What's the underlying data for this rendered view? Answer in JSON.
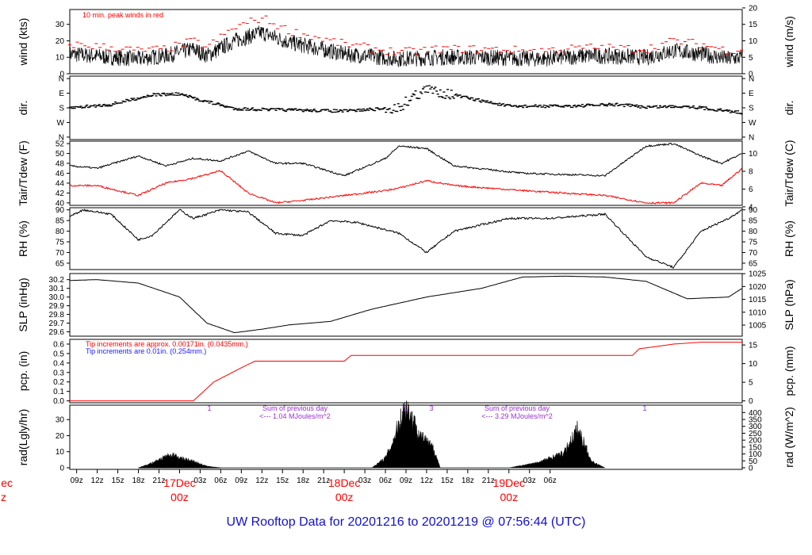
{
  "title": "UW Rooftop Data for 20201216  to  20201219 @ 07:56:44  (UTC)",
  "colors": {
    "black": "#000000",
    "red": "#ff0000",
    "blue": "#1a1aff",
    "purple": "#9a30d0",
    "title": "#1010d0"
  },
  "chart_data": [
    {
      "type": "line",
      "panel": "wind",
      "ylabel_left": "wind (kts)",
      "ylabel_right": "wind (m/s)",
      "ylim": [
        0,
        39
      ],
      "left_ticks": [
        "0",
        "10",
        "20",
        "30"
      ],
      "right_ticks": [
        "0",
        "5",
        "10",
        "15",
        "20"
      ],
      "annotation": "10 min. peak winds in red",
      "x_hours": [
        0,
        6,
        10,
        14,
        18,
        20,
        24,
        28,
        32,
        40,
        48,
        54,
        60,
        68,
        76,
        84,
        88,
        92,
        96,
        98
      ],
      "series": [
        {
          "values": [
            12,
            10,
            9,
            11,
            15,
            11,
            20,
            25,
            19,
            12,
            9,
            10,
            10,
            9,
            11,
            10,
            14,
            12,
            9,
            10
          ]
        },
        {
          "values": [
            18,
            16,
            14,
            15,
            20,
            16,
            28,
            34,
            26,
            18,
            13,
            15,
            15,
            14,
            16,
            15,
            20,
            18,
            14,
            15
          ]
        }
      ]
    },
    {
      "type": "scatter",
      "panel": "dir",
      "ylabel_left": "dir.",
      "ylabel_right": "dir.",
      "left_ticks": [
        "N",
        "E",
        "S",
        "W",
        "N"
      ],
      "right_ticks": [
        "N",
        "E",
        "S",
        "W",
        "N"
      ],
      "x_hours": [
        0,
        6,
        12,
        16,
        18,
        24,
        28,
        40,
        48,
        50,
        52,
        54,
        58,
        64,
        72,
        80,
        84,
        90,
        98
      ],
      "series": [
        {
          "values": [
            180,
            160,
            100,
            95,
            120,
            185,
            190,
            200,
            180,
            110,
            70,
            80,
            120,
            170,
            170,
            160,
            175,
            170,
            210
          ]
        }
      ]
    },
    {
      "type": "line",
      "panel": "temp",
      "ylabel_left": "Tair/Tdew (F)",
      "ylabel_right": "Tair/Tdew (C)",
      "ylim": [
        39.5,
        52.5
      ],
      "left_ticks": [
        "40",
        "42",
        "44",
        "46",
        "48",
        "50",
        "52"
      ],
      "right_ticks": [
        "4",
        "6",
        "8",
        "10"
      ],
      "x_hours": [
        0,
        4,
        10,
        14,
        18,
        22,
        26,
        30,
        34,
        40,
        46,
        48,
        52,
        56,
        66,
        78,
        84,
        88,
        92,
        95,
        98
      ],
      "series": [
        {
          "values": [
            47.5,
            47,
            49.5,
            47.5,
            49,
            48.5,
            50.5,
            48,
            48,
            45.5,
            49,
            51.5,
            51,
            47.5,
            46,
            45.5,
            51.5,
            52,
            49.5,
            48,
            50
          ]
        },
        {
          "values": [
            43.5,
            43.5,
            41.5,
            44,
            45,
            46.5,
            42,
            40,
            40.5,
            41.5,
            42.5,
            43,
            44.5,
            43.5,
            42.5,
            41.5,
            40,
            40,
            44,
            43.5,
            47
          ]
        }
      ]
    },
    {
      "type": "line",
      "panel": "rh",
      "ylabel_left": "RH (%)",
      "ylabel_right": "RH (%)",
      "ylim": [
        62,
        91
      ],
      "left_ticks": [
        "65",
        "70",
        "75",
        "80",
        "85",
        "90"
      ],
      "right_ticks": [
        "65",
        "70",
        "75",
        "80",
        "85",
        "90"
      ],
      "x_hours": [
        0,
        2,
        6,
        10,
        12,
        16,
        18,
        22,
        26,
        30,
        34,
        38,
        42,
        48,
        52,
        56,
        64,
        70,
        78,
        84,
        88,
        92,
        96,
        98
      ],
      "series": [
        {
          "values": [
            87,
            90,
            88,
            76,
            78,
            90,
            86,
            90,
            89,
            79,
            78,
            85,
            84,
            79,
            70,
            80,
            86,
            86,
            88,
            68,
            63,
            80,
            86,
            90
          ]
        }
      ]
    },
    {
      "type": "line",
      "panel": "slp",
      "ylabel_left": "SLP (inHg)",
      "ylabel_right": "SLP (hPa)",
      "ylim": [
        29.55,
        30.27
      ],
      "left_ticks": [
        "29.6",
        "29.7",
        "29.8",
        "29.9",
        "30.0",
        "30.1",
        "30.2"
      ],
      "right_ticks": [
        "1005",
        "1010",
        "1015",
        "1020",
        "1025"
      ],
      "x_hours": [
        0,
        4,
        10,
        16,
        20,
        24,
        28,
        32,
        38,
        44,
        52,
        60,
        66,
        72,
        78,
        84,
        90,
        96,
        98
      ],
      "series": [
        {
          "values": [
            30.19,
            30.2,
            30.16,
            30.0,
            29.7,
            29.59,
            29.63,
            29.68,
            29.72,
            29.86,
            30.0,
            30.1,
            30.23,
            30.24,
            30.23,
            30.18,
            29.98,
            30.0,
            30.1
          ]
        }
      ]
    },
    {
      "type": "line",
      "panel": "pcp",
      "ylabel_left": "pcp. (in)",
      "ylabel_right": "pcp. (mm)",
      "ylim": [
        -0.02,
        0.65
      ],
      "left_ticks": [
        "0.0",
        "0.1",
        "0.2",
        "0.3",
        "0.4",
        "0.5",
        "0.6"
      ],
      "right_ticks": [
        "0",
        "5",
        "10",
        "15"
      ],
      "annotations": [
        "Tip increments are approx. 0.00171in. (0.0435mm.)",
        "Tip increments are 0.01in. (0.254mm.)"
      ],
      "x_hours": [
        0,
        18,
        21,
        25,
        27,
        32,
        40,
        41,
        42,
        56,
        70,
        82,
        83,
        88,
        92,
        98
      ],
      "series": [
        {
          "values": [
            0,
            0,
            0.2,
            0.35,
            0.42,
            0.42,
            0.42,
            0.48,
            0.48,
            0.48,
            0.48,
            0.48,
            0.55,
            0.6,
            0.62,
            0.62
          ]
        }
      ]
    },
    {
      "type": "area",
      "panel": "rad",
      "ylabel_left": "rad(Lgly/hr)",
      "ylabel_right": "rad (W/m^2)",
      "ylim": [
        -1,
        39
      ],
      "left_ticks": [
        "0",
        "10",
        "20",
        "30"
      ],
      "right_ticks": [
        "0",
        "50",
        "100",
        "150",
        "200",
        "250",
        "300",
        "350",
        "400"
      ],
      "annotations": [
        "1",
        "Sum of previous day",
        "<--- 1.04 MJoules/m^2",
        "1",
        "3",
        "Sum of previous day",
        "<--- 3.29 MJoules/m^2",
        "1"
      ],
      "x_hours": [
        10,
        12,
        14,
        15,
        16,
        18,
        20,
        22,
        44,
        46,
        47,
        48,
        49,
        50,
        51,
        53,
        54,
        60,
        64,
        68,
        72,
        74,
        75,
        76,
        78
      ],
      "series": [
        {
          "values": [
            0,
            3,
            7,
            8,
            6,
            4,
            1,
            0,
            0,
            6,
            15,
            28,
            38,
            30,
            20,
            12,
            0,
            0,
            0,
            3,
            9,
            24,
            15,
            4,
            0
          ]
        }
      ]
    }
  ],
  "x_axis": {
    "start_hour_utc": 8,
    "hour_labels": [
      "09z",
      "12z",
      "15z",
      "18z",
      "21z",
      "03z",
      "06z",
      "09z",
      "12z",
      "15z",
      "18z",
      "21z",
      "03z",
      "06z",
      "09z",
      "12z",
      "15z",
      "18z",
      "21z",
      "03z",
      "06z"
    ],
    "hour_positions": [
      1,
      4,
      7,
      10,
      13,
      19,
      22,
      25,
      28,
      31,
      34,
      37,
      43,
      46,
      49,
      52,
      55,
      58,
      61,
      67,
      70
    ],
    "day_labels": [
      {
        "top": "17Dec",
        "bottom": "00z",
        "hour": 16
      },
      {
        "top": "18Dec",
        "bottom": "00z",
        "hour": 40
      },
      {
        "top": "19Dec",
        "bottom": "00z",
        "hour": 64
      }
    ],
    "cut_label": {
      "top": "ec",
      "bottom": "z"
    }
  }
}
